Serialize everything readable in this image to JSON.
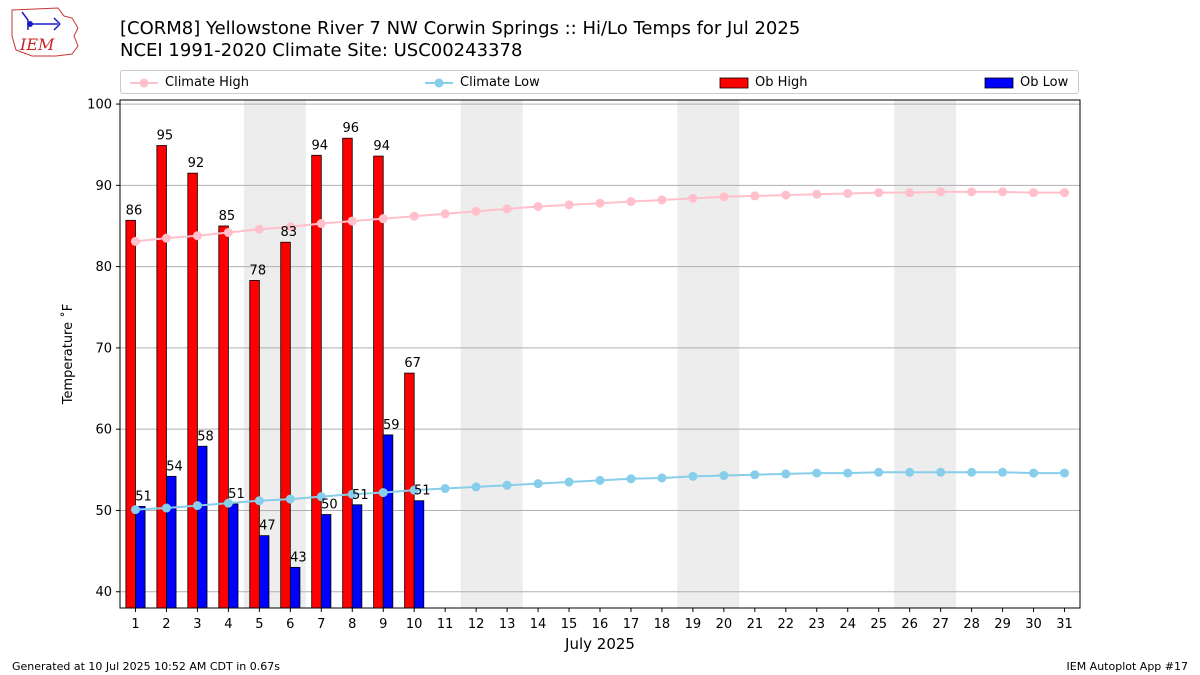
{
  "header": {
    "title_line1": "[CORM8] Yellowstone River 7 NW Corwin Springs :: Hi/Lo Temps for Jul 2025",
    "title_line2": "NCEI 1991-2020 Climate Site: USC00243378",
    "logo_text": "IEM"
  },
  "footer": {
    "left": "Generated at 10 Jul 2025 10:52 AM CDT in 0.67s",
    "right": "IEM Autoplot App #17"
  },
  "colors": {
    "climate_high": "#ffc0cb",
    "climate_low": "#87ceeb",
    "ob_high": "#ff0000",
    "ob_low": "#0000ff",
    "weekend_shade": "#ededed",
    "grid": "#b0b0b0"
  },
  "chart_data": {
    "type": "bar",
    "xlabel": "July 2025",
    "ylabel": "Temperature ˚F",
    "ylim": [
      38,
      100.5
    ],
    "yticks": [
      40,
      50,
      60,
      70,
      80,
      90,
      100
    ],
    "grid": "horizontal",
    "legend_position": "top",
    "days": [
      1,
      2,
      3,
      4,
      5,
      6,
      7,
      8,
      9,
      10,
      11,
      12,
      13,
      14,
      15,
      16,
      17,
      18,
      19,
      20,
      21,
      22,
      23,
      24,
      25,
      26,
      27,
      28,
      29,
      30,
      31
    ],
    "weekend_shaded_days": [
      [
        5,
        6
      ],
      [
        12,
        13
      ],
      [
        19,
        20
      ],
      [
        26,
        27
      ]
    ],
    "series": [
      {
        "name": "Climate High",
        "kind": "line",
        "values": [
          83.1,
          83.5,
          83.8,
          84.2,
          84.6,
          84.9,
          85.3,
          85.6,
          85.9,
          86.2,
          86.5,
          86.8,
          87.1,
          87.4,
          87.6,
          87.8,
          88.0,
          88.2,
          88.4,
          88.6,
          88.7,
          88.8,
          88.9,
          89.0,
          89.1,
          89.1,
          89.2,
          89.2,
          89.2,
          89.1,
          89.1
        ]
      },
      {
        "name": "Climate Low",
        "kind": "line",
        "values": [
          50.1,
          50.3,
          50.6,
          50.9,
          51.2,
          51.4,
          51.7,
          52.0,
          52.2,
          52.5,
          52.7,
          52.9,
          53.1,
          53.3,
          53.5,
          53.7,
          53.9,
          54.0,
          54.2,
          54.3,
          54.4,
          54.5,
          54.6,
          54.6,
          54.7,
          54.7,
          54.7,
          54.7,
          54.7,
          54.6,
          54.6
        ]
      },
      {
        "name": "Ob High",
        "kind": "bar",
        "values": [
          86,
          95,
          92,
          85,
          78,
          83,
          94,
          96,
          94,
          67
        ],
        "plotted": [
          85.7,
          94.9,
          91.5,
          85.0,
          78.3,
          83.0,
          93.7,
          95.8,
          93.6,
          66.9
        ],
        "labels": [
          "86",
          "95",
          "92",
          "85",
          "78",
          "83",
          "94",
          "96",
          "94",
          "67"
        ]
      },
      {
        "name": "Ob Low",
        "kind": "bar",
        "values": [
          51,
          54,
          58,
          51,
          47,
          43,
          50,
          51,
          59,
          51
        ],
        "plotted": [
          50.5,
          54.2,
          57.9,
          50.8,
          46.9,
          43.0,
          49.5,
          50.7,
          59.3,
          51.2
        ],
        "labels": [
          "51",
          "54",
          "58",
          "51",
          "47",
          "43",
          "50",
          "51",
          "59",
          "51"
        ]
      }
    ]
  }
}
